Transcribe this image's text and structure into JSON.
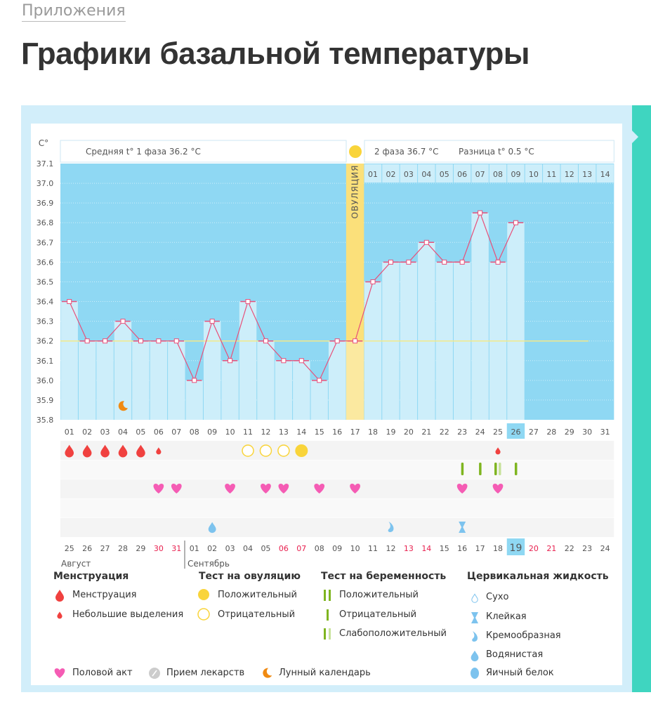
{
  "breadcrumb": "Приложения",
  "page_title": "Графики базальной температуры",
  "chart_data": {
    "type": "line",
    "y_unit": "C°",
    "ylim": [
      35.8,
      37.1
    ],
    "y_ticks": [
      "37.1",
      "37.0",
      "36.9",
      "36.8",
      "36.7",
      "36.6",
      "36.5",
      "36.4",
      "36.3",
      "36.2",
      "36.1",
      "36.0",
      "35.9",
      "35.8"
    ],
    "cycle_days": [
      "01",
      "02",
      "03",
      "04",
      "05",
      "06",
      "07",
      "08",
      "09",
      "10",
      "11",
      "12",
      "13",
      "14",
      "15",
      "16",
      "17",
      "18",
      "19",
      "20",
      "21",
      "22",
      "23",
      "24",
      "25",
      "26",
      "27",
      "28",
      "29",
      "30",
      "31"
    ],
    "temperatures": [
      36.4,
      36.2,
      36.2,
      36.3,
      36.2,
      36.2,
      36.2,
      36.0,
      36.3,
      36.1,
      36.4,
      36.2,
      36.1,
      36.1,
      36.0,
      36.2,
      36.2,
      36.5,
      36.6,
      36.6,
      36.7,
      36.6,
      36.6,
      36.85,
      36.6,
      36.8
    ],
    "coverline": 36.2,
    "ovulation_day": 17,
    "ovulation_label": "ОВУЛЯЦИЯ",
    "current_day": 26,
    "phase1_label": "Средняя t° 1 фаза 36.2 °C",
    "phase2_label": "2 фаза 36.7 °C",
    "diff_label": "Разница t° 0.5 °C",
    "phase2_days": [
      "01",
      "02",
      "03",
      "04",
      "05",
      "06",
      "07",
      "08",
      "09",
      "10",
      "11",
      "12",
      "13",
      "14"
    ],
    "calendar_dates": [
      "25",
      "26",
      "27",
      "28",
      "29",
      "30",
      "31",
      "01",
      "02",
      "03",
      "04",
      "05",
      "06",
      "07",
      "08",
      "09",
      "10",
      "11",
      "12",
      "13",
      "14",
      "15",
      "16",
      "17",
      "18",
      "19",
      "20",
      "21",
      "22",
      "23",
      "24"
    ],
    "weekend_indices": [
      5,
      6,
      12,
      13,
      19,
      20,
      26,
      27
    ],
    "months": [
      "Август",
      "Сентябрь"
    ],
    "moon_days": [
      4
    ],
    "menstruation_days": [
      1,
      2,
      3,
      4,
      5
    ],
    "spotting_days": [
      6,
      25
    ],
    "ovulation_test_negative_days": [
      11,
      12,
      13
    ],
    "ovulation_test_positive_days": [
      14
    ],
    "pregnancy_test_negative_days": [
      23,
      24,
      26
    ],
    "pregnancy_test_weak_days": [
      25
    ],
    "intercourse_days": [
      6,
      7,
      10,
      12,
      13,
      15,
      17,
      23,
      25
    ],
    "cervical_fluid": [
      {
        "day": 9,
        "type": "watery"
      },
      {
        "day": 19,
        "type": "creamy"
      },
      {
        "day": 23,
        "type": "sticky"
      }
    ]
  },
  "legend": {
    "menstruation": {
      "title": "Менструация",
      "items": [
        "Менструация",
        "Небольшие выделения"
      ]
    },
    "ovulation_test": {
      "title": "Тест на овуляцию",
      "items": [
        "Положительный",
        "Отрицательный"
      ]
    },
    "pregnancy_test": {
      "title": "Тест на беременность",
      "items": [
        "Положительный",
        "Отрицательный",
        "Слабоположительный"
      ]
    },
    "cervical": {
      "title": "Цервикальная жидкость",
      "items": [
        "Сухо",
        "Клейкая",
        "Кремообразная",
        "Водянистая",
        "Яичный белок"
      ]
    },
    "other": [
      "Половой акт",
      "Прием лекарств",
      "Лунный календарь"
    ]
  },
  "colors": {
    "plot_bg": "#8fd8f3",
    "bar": "#cdeefa",
    "line": "#e8507a",
    "coverline": "#f3e98a",
    "ovulation": "#fbe9a0",
    "menstruation": "#f0413f",
    "heart": "#f55cb4",
    "ovu_test": "#f9d43a",
    "preg_test": "#7fb520",
    "fluid": "#7dc3ee",
    "moon": "#f08a12",
    "weekend": "#e8204f"
  }
}
